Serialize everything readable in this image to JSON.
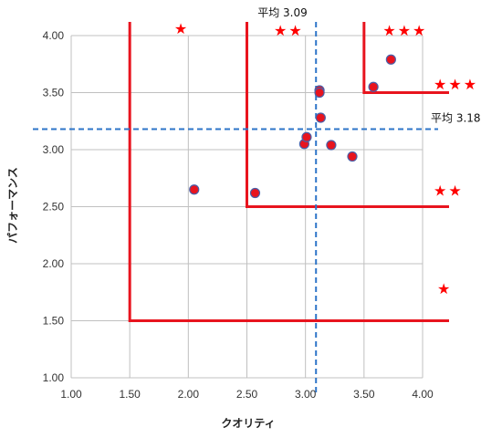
{
  "chart_data": {
    "type": "scatter",
    "title": "",
    "xlabel": "クオリティ",
    "ylabel": "パフォーマンス",
    "xlim": [
      1.0,
      4.0
    ],
    "ylim": [
      1.0,
      4.0
    ],
    "x_ticks": [
      "1.00",
      "1.50",
      "2.00",
      "2.50",
      "3.00",
      "3.50",
      "4.00"
    ],
    "y_ticks": [
      "1.00",
      "1.50",
      "2.00",
      "2.50",
      "3.00",
      "3.50",
      "4.00"
    ],
    "x_tick_values": [
      1.0,
      1.5,
      2.0,
      2.5,
      3.0,
      3.5,
      4.0
    ],
    "y_tick_values": [
      1.0,
      1.5,
      2.0,
      2.5,
      3.0,
      3.5,
      4.0
    ],
    "grid": true,
    "points": [
      {
        "x": 2.05,
        "y": 2.65
      },
      {
        "x": 2.57,
        "y": 2.62
      },
      {
        "x": 2.99,
        "y": 3.05
      },
      {
        "x": 3.01,
        "y": 3.11
      },
      {
        "x": 3.12,
        "y": 3.52
      },
      {
        "x": 3.12,
        "y": 3.5
      },
      {
        "x": 3.13,
        "y": 3.28
      },
      {
        "x": 3.22,
        "y": 3.04
      },
      {
        "x": 3.4,
        "y": 2.94
      },
      {
        "x": 3.58,
        "y": 3.55
      },
      {
        "x": 3.73,
        "y": 3.79
      }
    ],
    "averages": {
      "x": {
        "value": 3.09,
        "label": "平均 3.09"
      },
      "y": {
        "value": 3.18,
        "label": "平均 3.18"
      }
    },
    "thresholds": [
      {
        "corner_x": 1.5,
        "corner_y": 1.5,
        "stars": "★"
      },
      {
        "corner_x": 2.5,
        "corner_y": 2.5,
        "stars": "★★"
      },
      {
        "corner_x": 3.5,
        "corner_y": 3.5,
        "stars": "★★★"
      }
    ],
    "colors": {
      "point_fill": "#e8141e",
      "point_stroke": "#4a5fa8",
      "threshold": "#e8141e",
      "average": "#2e75c8",
      "grid": "#c0c0c0",
      "star": "#ff0000"
    }
  }
}
